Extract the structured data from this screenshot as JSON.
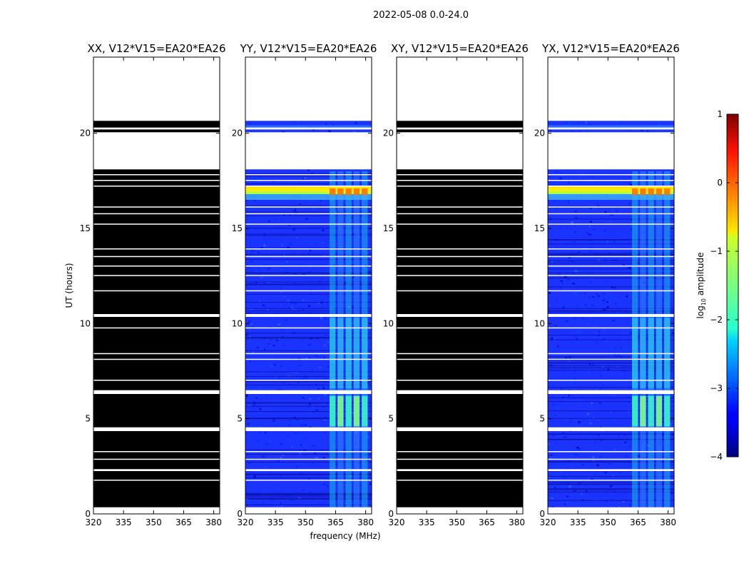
{
  "suptitle": "2022-05-08 0.0-24.0",
  "chart_data": {
    "type": "heatmap",
    "xlabel": "frequency (MHz)",
    "ylabel": "UT (hours)",
    "xlim": [
      320,
      383
    ],
    "ylim": [
      0,
      24
    ],
    "xticks": [
      320,
      335,
      350,
      365,
      380
    ],
    "yticks": [
      0,
      5,
      10,
      15,
      20
    ],
    "colorbar": {
      "label": "log10 amplitude",
      "label_base": "log",
      "label_sub": "10",
      "label_rest": " amplitude",
      "range": [
        -4,
        1
      ],
      "ticks": [
        1,
        0,
        -1,
        -2,
        -3,
        -4
      ],
      "tick_labels": [
        "1",
        "0",
        "−1",
        "−2",
        "−3",
        "−4"
      ]
    },
    "data_gaps_hours": [
      [
        0.0,
        0.35
      ],
      [
        1.75,
        1.8
      ],
      [
        2.25,
        2.35
      ],
      [
        2.85,
        2.9
      ],
      [
        3.25,
        3.3
      ],
      [
        4.35,
        4.55
      ],
      [
        6.3,
        6.5
      ],
      [
        7.0,
        7.05
      ],
      [
        8.1,
        8.15
      ],
      [
        8.4,
        8.45
      ],
      [
        9.75,
        9.8
      ],
      [
        10.35,
        10.5
      ],
      [
        11.7,
        11.75
      ],
      [
        12.5,
        12.55
      ],
      [
        13.0,
        13.05
      ],
      [
        13.5,
        13.55
      ],
      [
        13.9,
        13.95
      ],
      [
        15.2,
        15.25
      ],
      [
        15.75,
        15.8
      ],
      [
        16.1,
        16.15
      ],
      [
        17.2,
        17.25
      ],
      [
        17.5,
        17.55
      ],
      [
        17.8,
        17.85
      ],
      [
        18.1,
        20.05
      ],
      [
        20.2,
        20.3
      ],
      [
        20.65,
        24.0
      ]
    ],
    "panels": [
      {
        "name": "XX",
        "title": "XX, V12*V15=EA20*EA26",
        "has_signal": false,
        "background_log10": null
      },
      {
        "name": "YY",
        "title": "YY, V12*V15=EA20*EA26",
        "has_signal": true,
        "background_log10": -3.2,
        "features": [
          {
            "desc": "strong broadband band",
            "ut_range": [
              16.8,
              17.2
            ],
            "log10_amplitude": -0.8
          },
          {
            "desc": "narrowband RFI",
            "freq_range_mhz": [
              362,
              382
            ],
            "ut_range": [
              4.6,
              6.2
            ],
            "log10_amplitude": -1.8
          }
        ]
      },
      {
        "name": "XY",
        "title": "XY, V12*V15=EA20*EA26",
        "has_signal": false,
        "background_log10": null
      },
      {
        "name": "YX",
        "title": "YX, V12*V15=EA20*EA26",
        "has_signal": true,
        "background_log10": -3.2,
        "features": [
          {
            "desc": "strong broadband band",
            "ut_range": [
              16.8,
              17.2
            ],
            "log10_amplitude": -0.8
          },
          {
            "desc": "narrowband RFI",
            "freq_range_mhz": [
              362,
              382
            ],
            "ut_range": [
              4.6,
              6.2
            ],
            "log10_amplitude": -1.8
          }
        ]
      }
    ]
  }
}
